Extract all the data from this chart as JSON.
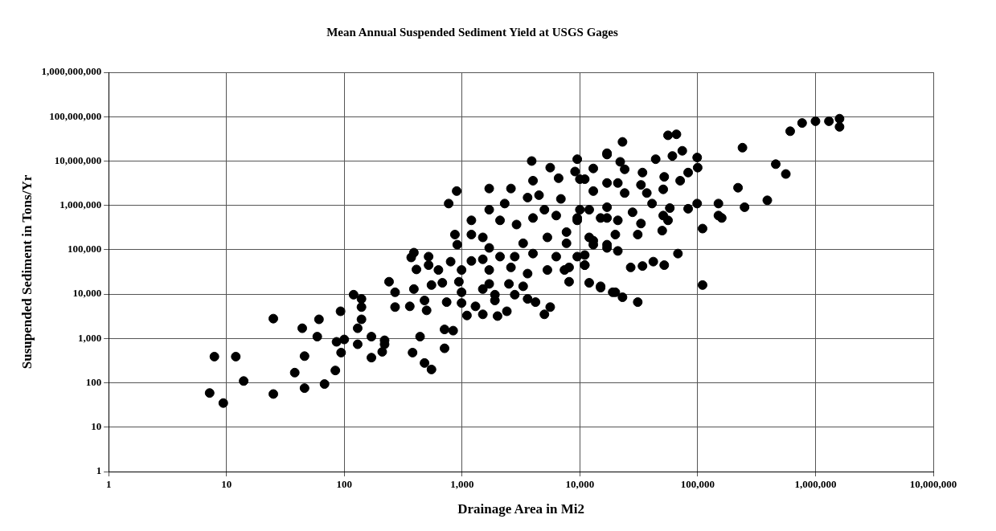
{
  "chart_data": {
    "type": "scatter",
    "title": "Mean Annual Suspended Sediment Yield at USGS Gages",
    "xlabel": "Drainage Area in Mi2",
    "ylabel": "Susupended Sediment in Tons/Yr",
    "log": "xy",
    "grid": true,
    "marker": "circle",
    "xlim": [
      1,
      10000000
    ],
    "ylim": [
      1,
      1000000000
    ],
    "xticks": [
      1,
      10,
      100,
      {
        "value": 1000,
        "label": "1,000"
      },
      {
        "value": 10000,
        "label": "10,000"
      },
      {
        "value": 100000,
        "label": "100,000"
      },
      {
        "value": 1000000,
        "label": "1,000,000"
      },
      {
        "value": 10000000,
        "label": "10,000,000"
      }
    ],
    "yticks": [
      1,
      10,
      100,
      {
        "value": 1000,
        "label": "1,000"
      },
      {
        "value": 10000,
        "label": "10,000"
      },
      {
        "value": 100000,
        "label": "100,000"
      },
      {
        "value": 1000000,
        "label": "1,000,000"
      },
      {
        "value": 10000000,
        "label": "10,000,000"
      },
      {
        "value": 100000000,
        "label": "100,000,000"
      },
      {
        "value": 1000000000,
        "label": "1,000,000,000"
      }
    ],
    "series": [
      {
        "color": "#000000",
        "x": [
          25,
          44,
          61,
          59,
          140,
          130,
          170,
          86,
          100,
          130,
          220,
          210,
          440,
          94,
          7.9,
          12,
          46,
          170,
          380,
          38,
          84,
          550,
          14,
          46,
          68,
          7.2,
          25,
          9.4,
          240,
          270,
          270,
          120,
          140,
          140,
          93,
          3900,
          9500,
          17000,
          5600,
          9100,
          13000,
          6600,
          4000,
          11000,
          1700,
          2600,
          900,
          3600,
          4500,
          770,
          2300,
          6900,
          1700,
          1200,
          2100,
          2900,
          1200,
          870,
          910,
          1500,
          1700,
          4000,
          5000,
          9500,
          12000,
          17000,
          3300,
          5300,
          7700,
          13000,
          17000,
          2100,
          2800,
          4000,
          6300,
          9500,
          1500,
          390,
          370,
          520,
          800,
          1200,
          520,
          630,
          410,
          990,
          1700,
          2600,
          3600,
          5300,
          7400,
          11000,
          680,
          940,
          1700,
          2500,
          3300,
          8100,
          12000,
          15000,
          19000,
          390,
          550,
          990,
          1500,
          1900,
          2800,
          3600,
          4200,
          480,
          740,
          990,
          1300,
          1900,
          360,
          500,
          1100,
          1500,
          2000,
          2400,
          5000,
          5600,
          710,
          840,
          220,
          710,
          480,
          770000,
          1000000,
          1300000,
          610000,
          56000,
          66000,
          23000,
          240000,
          17000,
          44000,
          61000,
          74000,
          99000,
          22000,
          100000,
          460000,
          560000,
          24000,
          10000,
          34000,
          52000,
          71000,
          83000,
          33000,
          21000,
          17000,
          220000,
          51000,
          13000,
          24000,
          37000,
          390000,
          250000,
          150000,
          99000,
          83000,
          58000,
          41000,
          150000,
          160000,
          56000,
          51000,
          28000,
          17000,
          10000,
          6300,
          33000,
          21000,
          15000,
          9500,
          110000,
          50000,
          31000,
          20000,
          12000,
          7700,
          17000,
          13000,
          21000,
          68000,
          11000,
          11000,
          27000,
          34000,
          42000,
          52000,
          8100,
          15000,
          20000,
          23000,
          31000,
          110000,
          1600000,
          1600000
        ],
        "values": [
          2800,
          1700,
          2700,
          1100,
          2700,
          1700,
          1100,
          840,
          950,
          740,
          740,
          500,
          1100,
          480,
          390,
          390,
          400,
          370,
          480,
          170,
          190,
          200,
          110,
          76,
          94,
          59,
          56,
          35,
          19000,
          11000,
          5100,
          9700,
          7800,
          5100,
          4100,
          10000000,
          11000000,
          15000000,
          7100000,
          5800000,
          6800000,
          4100000,
          3600000,
          3900000,
          2400000,
          2400000,
          2100000,
          1500000,
          1700000,
          1100000,
          1100000,
          1400000,
          800000,
          460000,
          460000,
          370000,
          220000,
          220000,
          130000,
          190000,
          110000,
          520000,
          800000,
          520000,
          800000,
          520000,
          140000,
          190000,
          140000,
          160000,
          110000,
          70000,
          70000,
          82000,
          70000,
          70000,
          61000,
          86000,
          67000,
          70000,
          54000,
          56000,
          45000,
          35000,
          36000,
          35000,
          35000,
          40000,
          29000,
          35000,
          35000,
          45000,
          18000,
          19000,
          17000,
          17000,
          15000,
          19000,
          18000,
          15000,
          11000,
          13000,
          16000,
          11000,
          13000,
          9700,
          9700,
          7800,
          6600,
          7200,
          6600,
          6300,
          5300,
          7200,
          5300,
          4300,
          3300,
          3500,
          3200,
          4100,
          3500,
          5100,
          1600,
          1500,
          910,
          600,
          280,
          72000000,
          79000000,
          79000000,
          47000000,
          38000000,
          40000000,
          27000000,
          20000000,
          14000000,
          11000000,
          13000000,
          17000000,
          12000000,
          9600000,
          7100000,
          8500000,
          5100000,
          6500000,
          3900000,
          5500000,
          4400000,
          3600000,
          5500000,
          2900000,
          3200000,
          3200000,
          2500000,
          2300000,
          2100000,
          1900000,
          1900000,
          1300000,
          910000,
          1100000,
          1100000,
          840000,
          870000,
          1100000,
          590000,
          520000,
          460000,
          590000,
          700000,
          910000,
          800000,
          590000,
          390000,
          460000,
          520000,
          460000,
          300000,
          270000,
          220000,
          220000,
          190000,
          250000,
          130000,
          130000,
          94000,
          82000,
          76000,
          45000,
          40000,
          43000,
          54000,
          45000,
          40000,
          14000,
          11000,
          8500,
          6600,
          16000,
          90000000,
          59000000
        ]
      }
    ]
  }
}
